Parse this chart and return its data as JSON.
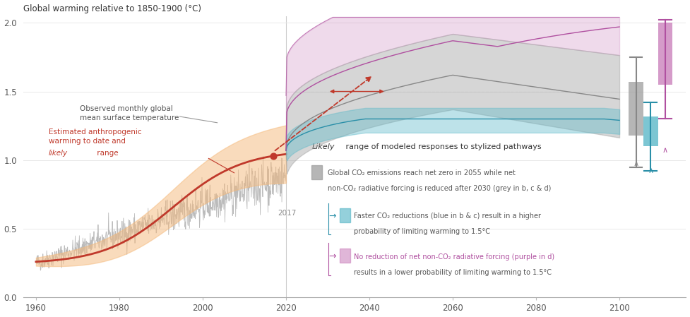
{
  "title": "Global warming relative to 1850-1900 (°C)",
  "background_color": "#ffffff",
  "ylim": [
    0.0,
    2.05
  ],
  "yticks": [
    0.0,
    0.5,
    1.0,
    1.5,
    2.0
  ],
  "xticks": [
    1960,
    1980,
    2000,
    2020,
    2040,
    2060,
    2080,
    2100
  ],
  "obs_color": "#b0b0b0",
  "anthro_line_color": "#c0392b",
  "anthro_fill_color": "#f5b97a",
  "grey_fill_color": "#9e9e9e",
  "blue_fill_color": "#5bb8c8",
  "purple_fill_color": "#c87ab8",
  "anno_color_blue": "#2a8fa8",
  "anno_color_purple": "#b050a0",
  "arrow_color": "#c0392b",
  "grey_line_color": "#888888",
  "blue_line_color": "#2a8fa8",
  "purple_line_color": "#b050a0"
}
